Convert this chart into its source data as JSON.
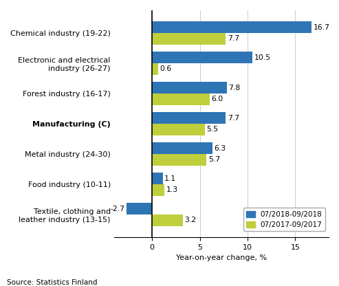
{
  "categories": [
    "Chemical industry (19-22)",
    "Electronic and electrical\nindustry (26-27)",
    "Forest industry (16-17)",
    "Manufacturing (C)",
    "Metal industry (24-30)",
    "Food industry (10-11)",
    "Textile, clothing and\nleather industry (13-15)"
  ],
  "series_2018": [
    16.7,
    10.5,
    7.8,
    7.7,
    6.3,
    1.1,
    -2.7
  ],
  "series_2017": [
    7.7,
    0.6,
    6.0,
    5.5,
    5.7,
    1.3,
    3.2
  ],
  "color_2018": "#2e75b6",
  "color_2017": "#bfce3b",
  "legend_2018": "07/2018-09/2018",
  "legend_2017": "07/2017-09/2017",
  "xlabel": "Year-on-year change, %",
  "source": "Source: Statistics Finland",
  "xlim": [
    -4.0,
    18.5
  ],
  "xticks": [
    0,
    5,
    10,
    15
  ],
  "bar_height": 0.38,
  "label_fontsize": 7.8,
  "axis_fontsize": 8.0,
  "source_fontsize": 7.5
}
